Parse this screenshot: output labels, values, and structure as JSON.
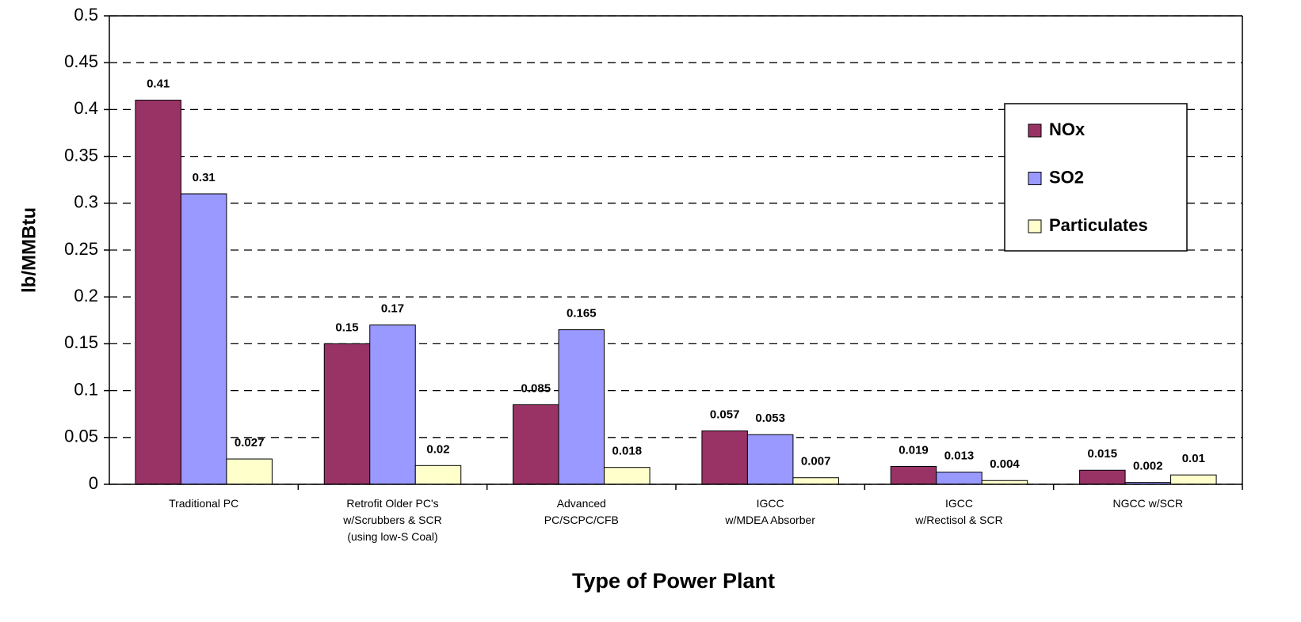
{
  "chart_data": {
    "type": "bar",
    "x_label": "Type of Power Plant",
    "y_label": "lb/MMBtu",
    "categories": [
      "Traditional PC",
      "Retrofit Older PC's\nw/Scrubbers & SCR\n(using low-S Coal)",
      "Advanced\nPC/SCPC/CFB",
      "IGCC\nw/MDEA Absorber",
      "IGCC\nw/Rectisol & SCR",
      "NGCC w/SCR"
    ],
    "series": [
      {
        "name": "NOx",
        "color": "#993366",
        "values": [
          0.41,
          0.15,
          0.085,
          0.057,
          0.019,
          0.015
        ]
      },
      {
        "name": "SO2",
        "color": "#9999ff",
        "values": [
          0.31,
          0.17,
          0.165,
          0.053,
          0.013,
          0.002
        ]
      },
      {
        "name": "Particulates",
        "color": "#ffffcc",
        "values": [
          0.027,
          0.02,
          0.018,
          0.007,
          0.004,
          0.01
        ]
      }
    ],
    "ylim": [
      0,
      0.5
    ],
    "yticks": [
      0,
      0.05,
      0.1,
      0.15,
      0.2,
      0.25,
      0.3,
      0.35,
      0.4,
      0.45,
      0.5
    ],
    "grid": true,
    "legend": "upper right"
  }
}
